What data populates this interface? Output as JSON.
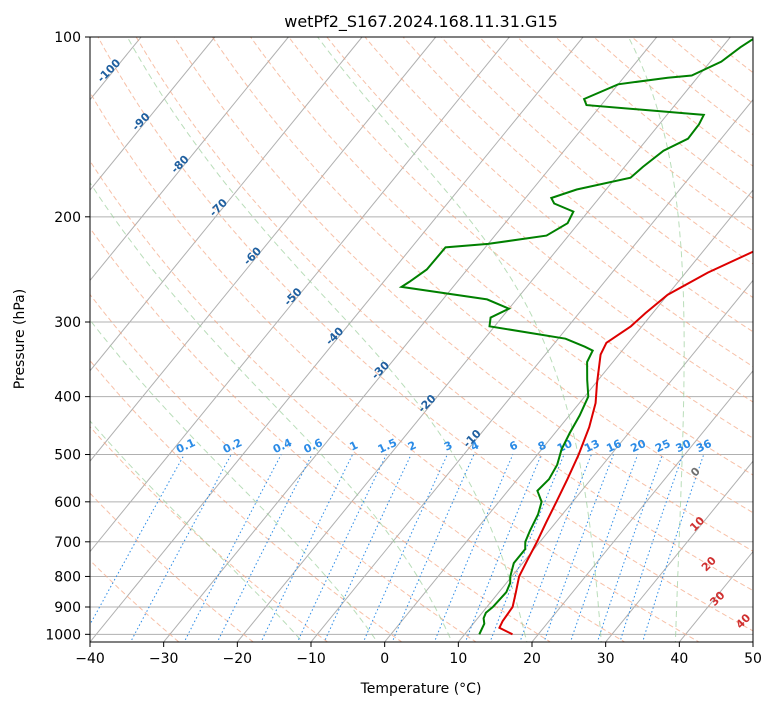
{
  "chart_data": {
    "type": "line",
    "title": "wetPf2_S167.2024.168.11.31.G15",
    "xlabel": "Temperature (°C)",
    "ylabel": "Pressure (hPa)",
    "xlim": [
      -40,
      50
    ],
    "ylim": [
      1030,
      100
    ],
    "y_scale": "log",
    "grid": true,
    "x_ticks": [
      -40,
      -30,
      -20,
      -10,
      0,
      10,
      20,
      30,
      40,
      50
    ],
    "x_tick_labels": [
      "−40",
      "−30",
      "−20",
      "−10",
      "0",
      "10",
      "20",
      "30",
      "40",
      "50"
    ],
    "y_ticks": [
      100,
      200,
      300,
      400,
      500,
      600,
      700,
      800,
      900,
      1000
    ],
    "y_tick_labels": [
      "100",
      "200",
      "300",
      "400",
      "500",
      "600",
      "700",
      "800",
      "900",
      "1000"
    ],
    "series": [
      {
        "color": "#dd0000",
        "points": [
          [
            16.5,
            1000
          ],
          [
            14.0,
            975
          ],
          [
            13.7,
            950
          ],
          [
            13.5,
            900
          ],
          [
            12.3,
            850
          ],
          [
            11.0,
            800
          ],
          [
            10.3,
            750
          ],
          [
            9.6,
            700
          ],
          [
            8.7,
            650
          ],
          [
            7.8,
            600
          ],
          [
            6.8,
            550
          ],
          [
            5.6,
            500
          ],
          [
            4.0,
            450
          ],
          [
            2.2,
            410
          ],
          [
            0.2,
            380
          ],
          [
            -2.5,
            340
          ],
          [
            -3.0,
            325
          ],
          [
            -1.5,
            305
          ],
          [
            -1.0,
            290
          ],
          [
            0.0,
            270
          ],
          [
            3.0,
            248
          ],
          [
            7.6,
            225
          ],
          [
            11.0,
            205
          ],
          [
            13.5,
            190
          ],
          [
            16.0,
            175
          ],
          [
            18.0,
            162
          ],
          [
            20.0,
            150
          ],
          [
            22.0,
            138
          ],
          [
            24.0,
            128
          ],
          [
            26.0,
            120
          ],
          [
            26.0,
            112
          ],
          [
            27.0,
            105
          ],
          [
            28.0,
            100
          ]
        ]
      },
      {
        "color": "#008000",
        "points": [
          [
            12.0,
            1000
          ],
          [
            11.5,
            960
          ],
          [
            10.8,
            940
          ],
          [
            10.5,
            920
          ],
          [
            10.8,
            900
          ],
          [
            11.0,
            850
          ],
          [
            10.5,
            820
          ],
          [
            9.8,
            800
          ],
          [
            8.8,
            760
          ],
          [
            8.8,
            720
          ],
          [
            8.0,
            700
          ],
          [
            7.4,
            670
          ],
          [
            6.7,
            630
          ],
          [
            5.8,
            600
          ],
          [
            4.0,
            575
          ],
          [
            4.3,
            550
          ],
          [
            3.8,
            520
          ],
          [
            2.7,
            490
          ],
          [
            2.0,
            460
          ],
          [
            1.4,
            430
          ],
          [
            0.5,
            400
          ],
          [
            -1.5,
            375
          ],
          [
            -3.5,
            350
          ],
          [
            -4.0,
            335
          ],
          [
            -5.5,
            330
          ],
          [
            -9.0,
            320
          ],
          [
            -20.7,
            305
          ],
          [
            -21.5,
            295
          ],
          [
            -20.0,
            285
          ],
          [
            -24.0,
            275
          ],
          [
            -37.0,
            262
          ],
          [
            -36.5,
            257
          ],
          [
            -35.5,
            245
          ],
          [
            -35.4,
            225
          ],
          [
            -30.0,
            222
          ],
          [
            -23.0,
            215
          ],
          [
            -21.5,
            205
          ],
          [
            -22.0,
            196
          ],
          [
            -25.5,
            190
          ],
          [
            -26.5,
            186
          ],
          [
            -24.0,
            180
          ],
          [
            -18.0,
            172
          ],
          [
            -17.5,
            165
          ],
          [
            -16.5,
            155
          ],
          [
            -14.5,
            148
          ],
          [
            -14.6,
            140
          ],
          [
            -15.0,
            135
          ],
          [
            -32.0,
            130
          ],
          [
            -33.0,
            127
          ],
          [
            -30.0,
            120
          ],
          [
            -24.0,
            117
          ],
          [
            -21.0,
            116
          ],
          [
            -18.5,
            110
          ],
          [
            -17.5,
            104
          ],
          [
            -16.5,
            100
          ]
        ]
      }
    ],
    "dry_adiabat_labels": [
      "-100",
      "-90",
      "-80",
      "-70",
      "-60",
      "-50",
      "-40",
      "-30",
      "-20",
      "-10",
      "0",
      "10",
      "20",
      "30",
      "40"
    ],
    "mixing_ratio_labels": [
      "0.1",
      "0.2",
      "0.4",
      "0.6",
      "1",
      "1.5",
      "2",
      "3",
      "4",
      "6",
      "8",
      "10",
      "13",
      "16",
      "20",
      "25",
      "30",
      "36"
    ]
  }
}
